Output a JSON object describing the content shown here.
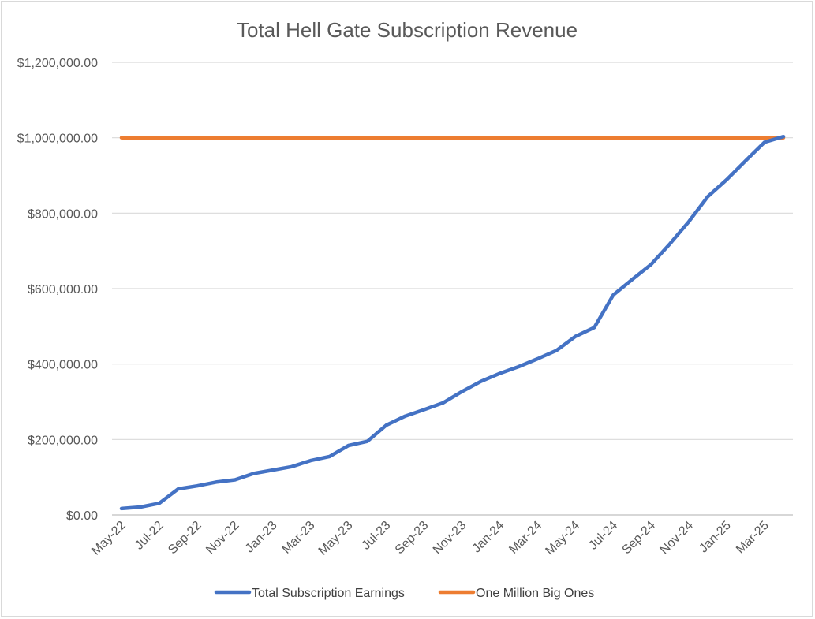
{
  "chart_data": {
    "type": "line",
    "title": "Total Hell Gate Subscription Revenue",
    "xlabel": "",
    "ylabel": "",
    "ylim": [
      0,
      1200000
    ],
    "y_ticks": [
      "$0.00",
      "$200,000.00",
      "$400,000.00",
      "$600,000.00",
      "$800,000.00",
      "$1,000,000.00",
      "$1,200,000.00"
    ],
    "y_tick_values": [
      0,
      200000,
      400000,
      600000,
      800000,
      1000000,
      1200000
    ],
    "categories": [
      "May-22",
      "Jun-22",
      "Jul-22",
      "Aug-22",
      "Sep-22",
      "Oct-22",
      "Nov-22",
      "Dec-22",
      "Jan-23",
      "Feb-23",
      "Mar-23",
      "Apr-23",
      "May-23",
      "Jun-23",
      "Jul-23",
      "Aug-23",
      "Sep-23",
      "Oct-23",
      "Nov-23",
      "Dec-23",
      "Jan-24",
      "Feb-24",
      "Mar-24",
      "Apr-24",
      "May-24",
      "Jun-24",
      "Jul-24",
      "Aug-24",
      "Sep-24",
      "Oct-24",
      "Nov-24",
      "Dec-24",
      "Jan-25",
      "Feb-25",
      "Mar-25",
      "Apr-25"
    ],
    "x_tick_labels": [
      "May-22",
      "Jul-22",
      "Sep-22",
      "Nov-22",
      "Jan-23",
      "Mar-23",
      "May-23",
      "Jul-23",
      "Sep-23",
      "Nov-23",
      "Jan-24",
      "Mar-24",
      "May-24",
      "Jul-24",
      "Sep-24",
      "Nov-24",
      "Jan-25",
      "Mar-25"
    ],
    "grid": true,
    "legend_position": "bottom",
    "series": [
      {
        "name": "Total Subscription Earnings",
        "color": "#4472C4",
        "values": [
          17000,
          21000,
          31000,
          69000,
          77000,
          87000,
          93000,
          110000,
          119000,
          128000,
          144000,
          155000,
          184000,
          195000,
          238000,
          262000,
          279000,
          297000,
          327000,
          354000,
          375000,
          393000,
          414000,
          436000,
          473000,
          497000,
          583000,
          624000,
          664000,
          719000,
          778000,
          844000,
          889000,
          939000,
          988000,
          1003000
        ]
      },
      {
        "name": "One Million Big Ones",
        "color": "#ED7D31",
        "values": [
          1000000,
          1000000,
          1000000,
          1000000,
          1000000,
          1000000,
          1000000,
          1000000,
          1000000,
          1000000,
          1000000,
          1000000,
          1000000,
          1000000,
          1000000,
          1000000,
          1000000,
          1000000,
          1000000,
          1000000,
          1000000,
          1000000,
          1000000,
          1000000,
          1000000,
          1000000,
          1000000,
          1000000,
          1000000,
          1000000,
          1000000,
          1000000,
          1000000,
          1000000,
          1000000,
          1000000
        ]
      }
    ]
  }
}
